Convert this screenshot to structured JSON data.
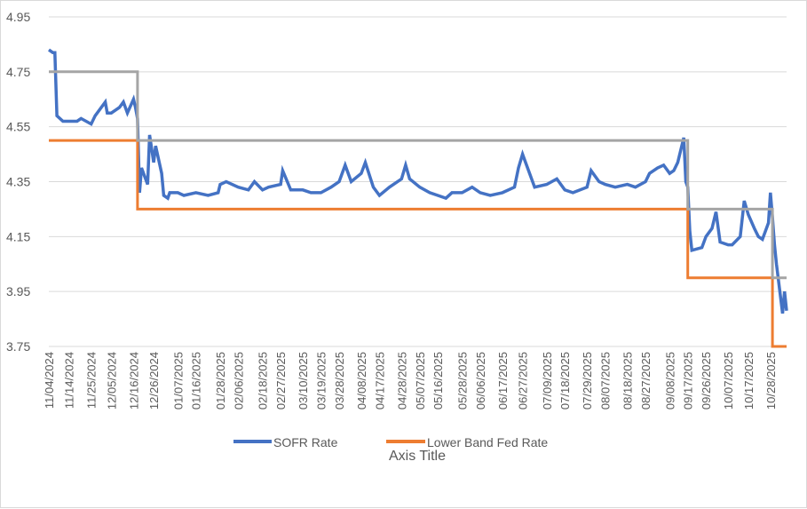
{
  "chart_data": {
    "type": "line",
    "title": "",
    "xlabel": "Axis Title",
    "ylabel": "",
    "ylim": [
      3.75,
      4.95
    ],
    "y_ticks": [
      "4.95",
      "4.75",
      "4.55",
      "4.35",
      "4.15",
      "3.95",
      "3.75"
    ],
    "grid": "horizontal",
    "legend_position": "bottom",
    "x_tick_labels": [
      "11/04/2024",
      "11/14/2024",
      "11/25/2024",
      "12/05/2024",
      "12/16/2024",
      "12/26/2024",
      "01/07/2025",
      "01/16/2025",
      "01/28/2025",
      "02/06/2025",
      "02/18/2025",
      "02/27/2025",
      "03/10/2025",
      "03/19/2025",
      "03/28/2025",
      "04/08/2025",
      "04/17/2025",
      "04/28/2025",
      "05/07/2025",
      "05/16/2025",
      "05/28/2025",
      "06/06/2025",
      "06/17/2025",
      "06/27/2025",
      "07/09/2025",
      "07/18/2025",
      "07/29/2025",
      "08/07/2025",
      "08/18/2025",
      "08/27/2025",
      "09/08/2025",
      "09/17/2025",
      "09/26/2025",
      "10/07/2025",
      "10/17/2025",
      "10/28/2025"
    ],
    "x_range": [
      "11/04/2024",
      "11/05/2025"
    ],
    "series": [
      {
        "name": "SOFR Rate",
        "color": "#4472C4",
        "points": [
          [
            "11/04/2024",
            4.83
          ],
          [
            "11/06/2024",
            4.82
          ],
          [
            "11/07/2024",
            4.82
          ],
          [
            "11/08/2024",
            4.59
          ],
          [
            "11/11/2024",
            4.57
          ],
          [
            "11/14/2024",
            4.57
          ],
          [
            "11/18/2024",
            4.57
          ],
          [
            "11/20/2024",
            4.58
          ],
          [
            "11/25/2024",
            4.56
          ],
          [
            "11/27/2024",
            4.59
          ],
          [
            "12/02/2024",
            4.64
          ],
          [
            "12/03/2024",
            4.6
          ],
          [
            "12/05/2024",
            4.6
          ],
          [
            "12/09/2024",
            4.62
          ],
          [
            "12/11/2024",
            4.64
          ],
          [
            "12/13/2024",
            4.6
          ],
          [
            "12/16/2024",
            4.65
          ],
          [
            "12/17/2024",
            4.62
          ],
          [
            "12/18/2024",
            4.58
          ],
          [
            "12/19/2024",
            4.31
          ],
          [
            "12/20/2024",
            4.4
          ],
          [
            "12/23/2024",
            4.34
          ],
          [
            "12/24/2024",
            4.52
          ],
          [
            "12/26/2024",
            4.42
          ],
          [
            "12/27/2024",
            4.48
          ],
          [
            "12/30/2024",
            4.38
          ],
          [
            "12/31/2024",
            4.3
          ],
          [
            "01/02/2025",
            4.29
          ],
          [
            "01/03/2025",
            4.31
          ],
          [
            "01/07/2025",
            4.31
          ],
          [
            "01/10/2025",
            4.3
          ],
          [
            "01/16/2025",
            4.31
          ],
          [
            "01/22/2025",
            4.3
          ],
          [
            "01/27/2025",
            4.31
          ],
          [
            "01/28/2025",
            4.34
          ],
          [
            "01/31/2025",
            4.35
          ],
          [
            "02/06/2025",
            4.33
          ],
          [
            "02/11/2025",
            4.32
          ],
          [
            "02/14/2025",
            4.35
          ],
          [
            "02/18/2025",
            4.32
          ],
          [
            "02/21/2025",
            4.33
          ],
          [
            "02/27/2025",
            4.34
          ],
          [
            "02/28/2025",
            4.39
          ],
          [
            "03/04/2025",
            4.32
          ],
          [
            "03/10/2025",
            4.32
          ],
          [
            "03/14/2025",
            4.31
          ],
          [
            "03/19/2025",
            4.31
          ],
          [
            "03/24/2025",
            4.33
          ],
          [
            "03/28/2025",
            4.35
          ],
          [
            "03/31/2025",
            4.41
          ],
          [
            "04/03/2025",
            4.35
          ],
          [
            "04/08/2025",
            4.38
          ],
          [
            "04/10/2025",
            4.42
          ],
          [
            "04/14/2025",
            4.33
          ],
          [
            "04/17/2025",
            4.3
          ],
          [
            "04/22/2025",
            4.33
          ],
          [
            "04/28/2025",
            4.36
          ],
          [
            "04/30/2025",
            4.41
          ],
          [
            "05/02/2025",
            4.36
          ],
          [
            "05/07/2025",
            4.33
          ],
          [
            "05/12/2025",
            4.31
          ],
          [
            "05/16/2025",
            4.3
          ],
          [
            "05/20/2025",
            4.29
          ],
          [
            "05/23/2025",
            4.31
          ],
          [
            "05/28/2025",
            4.31
          ],
          [
            "06/02/2025",
            4.33
          ],
          [
            "06/06/2025",
            4.31
          ],
          [
            "06/11/2025",
            4.3
          ],
          [
            "06/17/2025",
            4.31
          ],
          [
            "06/23/2025",
            4.33
          ],
          [
            "06/25/2025",
            4.4
          ],
          [
            "06/27/2025",
            4.45
          ],
          [
            "06/30/2025",
            4.39
          ],
          [
            "07/03/2025",
            4.33
          ],
          [
            "07/09/2025",
            4.34
          ],
          [
            "07/14/2025",
            4.36
          ],
          [
            "07/18/2025",
            4.32
          ],
          [
            "07/22/2025",
            4.31
          ],
          [
            "07/29/2025",
            4.33
          ],
          [
            "07/31/2025",
            4.39
          ],
          [
            "08/04/2025",
            4.35
          ],
          [
            "08/07/2025",
            4.34
          ],
          [
            "08/12/2025",
            4.33
          ],
          [
            "08/18/2025",
            4.34
          ],
          [
            "08/22/2025",
            4.33
          ],
          [
            "08/27/2025",
            4.35
          ],
          [
            "08/29/2025",
            4.38
          ],
          [
            "09/02/2025",
            4.4
          ],
          [
            "09/05/2025",
            4.41
          ],
          [
            "09/08/2025",
            4.38
          ],
          [
            "09/10/2025",
            4.39
          ],
          [
            "09/12/2025",
            4.42
          ],
          [
            "09/15/2025",
            4.51
          ],
          [
            "09/16/2025",
            4.35
          ],
          [
            "09/17/2025",
            4.33
          ],
          [
            "09/18/2025",
            4.17
          ],
          [
            "09/19/2025",
            4.1
          ],
          [
            "09/24/2025",
            4.11
          ],
          [
            "09/26/2025",
            4.15
          ],
          [
            "09/29/2025",
            4.18
          ],
          [
            "10/01/2025",
            4.24
          ],
          [
            "10/03/2025",
            4.13
          ],
          [
            "10/07/2025",
            4.12
          ],
          [
            "10/09/2025",
            4.12
          ],
          [
            "10/13/2025",
            4.15
          ],
          [
            "10/15/2025",
            4.28
          ],
          [
            "10/17/2025",
            4.23
          ],
          [
            "10/20/2025",
            4.18
          ],
          [
            "10/22/2025",
            4.15
          ],
          [
            "10/24/2025",
            4.14
          ],
          [
            "10/27/2025",
            4.2
          ],
          [
            "10/28/2025",
            4.31
          ],
          [
            "10/29/2025",
            4.22
          ],
          [
            "10/30/2025",
            4.12
          ],
          [
            "10/31/2025",
            4.05
          ],
          [
            "11/03/2025",
            3.87
          ],
          [
            "11/04/2025",
            3.95
          ],
          [
            "11/05/2025",
            3.88
          ]
        ]
      },
      {
        "name": "Lower Band Fed Rate",
        "color": "#ED7D31",
        "points": [
          [
            "11/04/2024",
            4.5
          ],
          [
            "12/18/2024",
            4.5
          ],
          [
            "12/18/2024",
            4.25
          ],
          [
            "09/17/2025",
            4.25
          ],
          [
            "09/17/2025",
            4.0
          ],
          [
            "10/29/2025",
            4.0
          ],
          [
            "10/29/2025",
            3.75
          ],
          [
            "11/05/2025",
            3.75
          ]
        ]
      },
      {
        "name": "",
        "color": "#A5A5A5",
        "points": [
          [
            "11/04/2024",
            4.75
          ],
          [
            "12/18/2024",
            4.75
          ],
          [
            "12/18/2024",
            4.5
          ],
          [
            "09/17/2025",
            4.5
          ],
          [
            "09/17/2025",
            4.25
          ],
          [
            "10/29/2025",
            4.25
          ],
          [
            "10/29/2025",
            4.0
          ],
          [
            "11/05/2025",
            4.0
          ]
        ]
      }
    ]
  }
}
